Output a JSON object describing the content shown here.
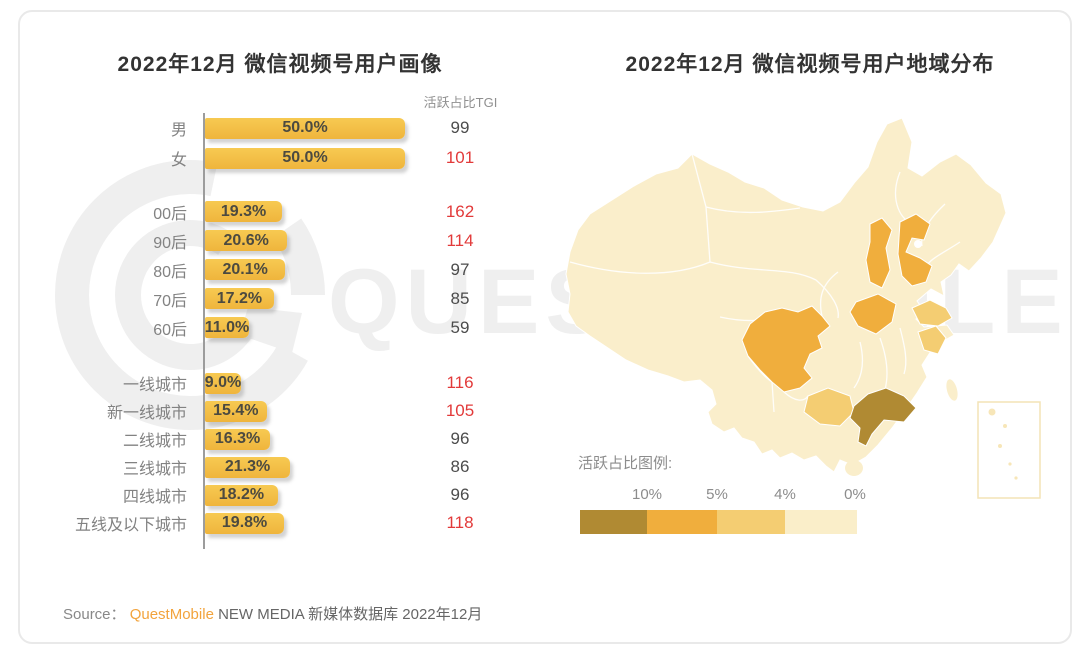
{
  "watermark": {
    "text": "QUESTMOBILE"
  },
  "source": {
    "prefix": "Source：",
    "brand": "QuestMobile",
    "rest": " NEW MEDIA 新媒体数据库 2022年12月"
  },
  "map_chart": {
    "palette": {
      "tier1": "#b08a33",
      "tier2": "#f0ae3d",
      "tier3": "#f4cd72",
      "tier4": "#faeec9",
      "base": "#faeecb"
    }
  },
  "chart_data": [
    {
      "type": "bar",
      "orientation": "horizontal",
      "title": "2022年12月 微信视频号用户画像",
      "column_header": "活跃占比TGI",
      "value_suffix": "%",
      "secondary_metric": "TGI",
      "xlim": [
        0,
        50
      ],
      "groups": [
        {
          "rows": [
            {
              "label": "男",
              "value": 50.0,
              "display": "50.0%",
              "tgi": 99
            },
            {
              "label": "女",
              "value": 50.0,
              "display": "50.0%",
              "tgi": 101
            }
          ]
        },
        {
          "rows": [
            {
              "label": "00后",
              "value": 19.3,
              "display": "19.3%",
              "tgi": 162
            },
            {
              "label": "90后",
              "value": 20.6,
              "display": "20.6%",
              "tgi": 114
            },
            {
              "label": "80后",
              "value": 20.1,
              "display": "20.1%",
              "tgi": 97
            },
            {
              "label": "70后",
              "value": 17.2,
              "display": "17.2%",
              "tgi": 85
            },
            {
              "label": "60后",
              "value": 11.0,
              "display": "11.0%",
              "tgi": 59
            }
          ]
        },
        {
          "rows": [
            {
              "label": "一线城市",
              "value": 9.0,
              "display": "9.0%",
              "tgi": 116
            },
            {
              "label": "新一线城市",
              "value": 15.4,
              "display": "15.4%",
              "tgi": 105
            },
            {
              "label": "二线城市",
              "value": 16.3,
              "display": "16.3%",
              "tgi": 96
            },
            {
              "label": "三线城市",
              "value": 21.3,
              "display": "21.3%",
              "tgi": 86
            },
            {
              "label": "四线城市",
              "value": 18.2,
              "display": "18.2%",
              "tgi": 96
            },
            {
              "label": "五线及以下城市",
              "value": 19.8,
              "display": "19.8%",
              "tgi": 118
            }
          ]
        }
      ]
    },
    {
      "type": "choropleth",
      "title": "2022年12月 微信视频号用户地域分布",
      "legend_title": "活跃占比图例:",
      "legend_labels": [
        "10%",
        "5%",
        "4%",
        "0%"
      ],
      "legend_colors": [
        "#b08a33",
        "#f0ae3d",
        "#f4cd72",
        "#faeec9"
      ],
      "regions": [
        {
          "name": "广东",
          "bucket": ">10%"
        },
        {
          "name": "四川",
          "bucket": "5%-10%"
        },
        {
          "name": "山西",
          "bucket": "5%-10%"
        },
        {
          "name": "河北",
          "bucket": "5%-10%"
        },
        {
          "name": "河南",
          "bucket": "5%-10%"
        },
        {
          "name": "山东",
          "bucket": "4%-5%"
        },
        {
          "name": "江苏",
          "bucket": "4%-5%"
        },
        {
          "name": "广西",
          "bucket": "4%-5%"
        },
        {
          "name": "其他省份",
          "bucket": "0%-4%"
        }
      ]
    }
  ]
}
